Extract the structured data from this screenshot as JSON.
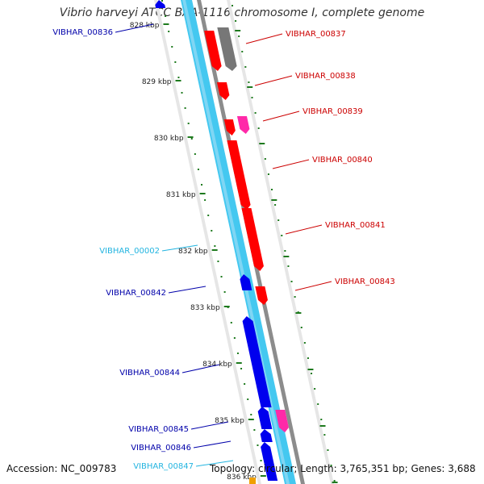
{
  "title": "Vibrio harveyi ATCC BAA-1116 chromosome I, complete genome",
  "footer": {
    "accession": "Accession: NC_009783",
    "topology": "Topology: circular; Length: 3,765,351 bp; Genes: 3,688"
  },
  "colors": {
    "forward_cds": "#ff0000",
    "forward_rna": "#ff2aa8",
    "reverse_cds": "#0000ee",
    "reverse_gene": "#44c8f0",
    "pseudo": "#777777",
    "tick": "#1e7a1e",
    "forward_label": "#cc0000",
    "reverse_label": "#0000aa",
    "reverse_label_light": "#22b4e0"
  },
  "scale": {
    "unit": "kbp",
    "tick_labels": [
      "828 kbp",
      "829 kbp",
      "830 kbp",
      "831 kbp",
      "832 kbp",
      "833 kbp",
      "834 kbp",
      "835 kbp",
      "836 kbp"
    ]
  },
  "features": [
    {
      "name": "VIBHAR_00836",
      "strand": "reverse",
      "color": "reverse_label"
    },
    {
      "name": "VIBHAR_00837",
      "strand": "forward",
      "color": "forward_label"
    },
    {
      "name": "VIBHAR_00838",
      "strand": "forward",
      "color": "forward_label"
    },
    {
      "name": "VIBHAR_00839",
      "strand": "forward",
      "color": "forward_label"
    },
    {
      "name": "VIBHAR_00840",
      "strand": "forward",
      "color": "forward_label"
    },
    {
      "name": "VIBHAR_00841",
      "strand": "forward",
      "color": "forward_label"
    },
    {
      "name": "VIBHAR_00002",
      "strand": "reverse",
      "color": "reverse_label_light"
    },
    {
      "name": "VIBHAR_00842",
      "strand": "reverse",
      "color": "reverse_label"
    },
    {
      "name": "VIBHAR_00843",
      "strand": "forward",
      "color": "forward_label"
    },
    {
      "name": "VIBHAR_00844",
      "strand": "reverse",
      "color": "reverse_label"
    },
    {
      "name": "VIBHAR_00845",
      "strand": "reverse",
      "color": "reverse_label"
    },
    {
      "name": "VIBHAR_00846",
      "strand": "reverse",
      "color": "reverse_label"
    },
    {
      "name": "VIBHAR_00847",
      "strand": "reverse",
      "color": "reverse_label_light"
    }
  ]
}
